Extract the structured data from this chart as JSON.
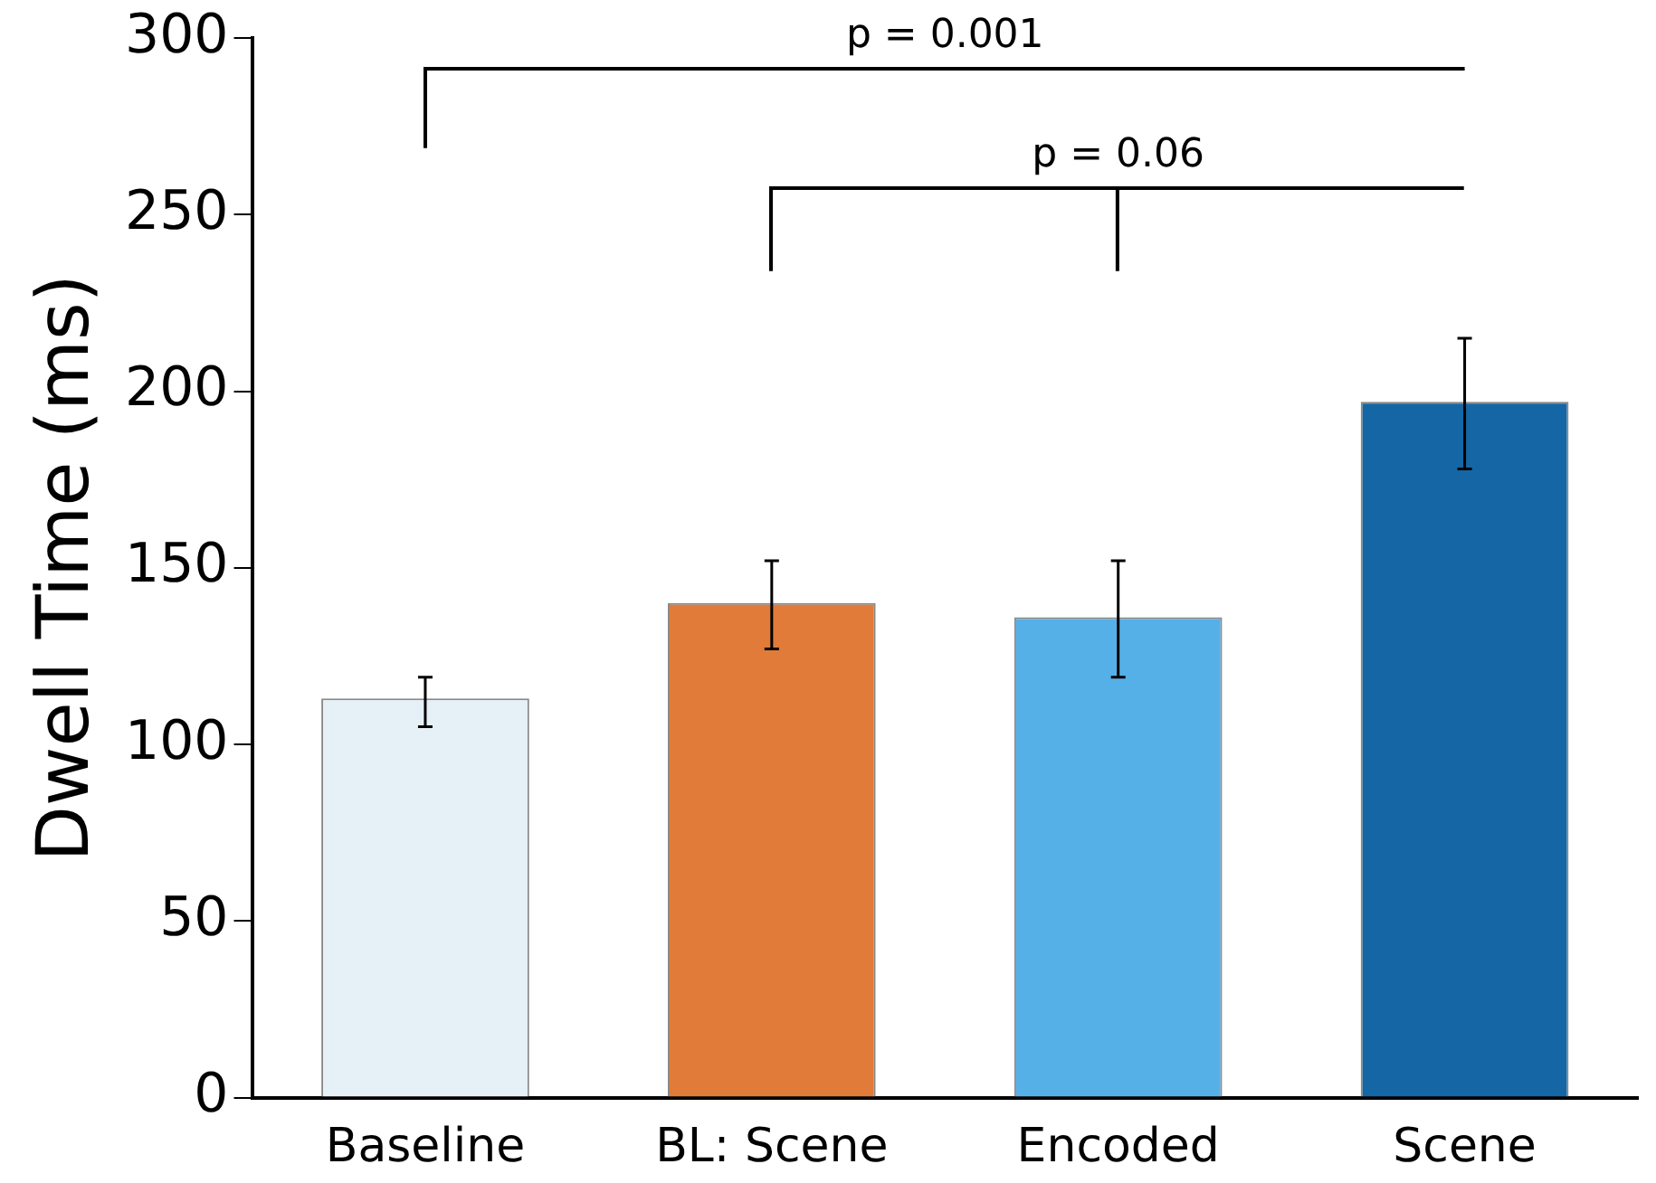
{
  "chart_data": {
    "type": "bar",
    "ylabel": "Dwell Time (ms)",
    "categories": [
      "Baseline",
      "BL: Scene",
      "Encoded",
      "Scene"
    ],
    "values": [
      113,
      140,
      136,
      197
    ],
    "colors": [
      "#e6f1f7",
      "#e07b39",
      "#56b0e8",
      "#1566a4"
    ],
    "errors": [
      [
        105,
        119
      ],
      [
        127,
        152
      ],
      [
        119,
        152
      ],
      [
        178,
        215
      ]
    ],
    "ylim": [
      0,
      300
    ],
    "yticks": [
      0,
      50,
      100,
      150,
      200,
      250,
      300
    ],
    "grid": false,
    "legend": false,
    "annotations": [
      "p = 0.001",
      "p = 0.06"
    ]
  }
}
